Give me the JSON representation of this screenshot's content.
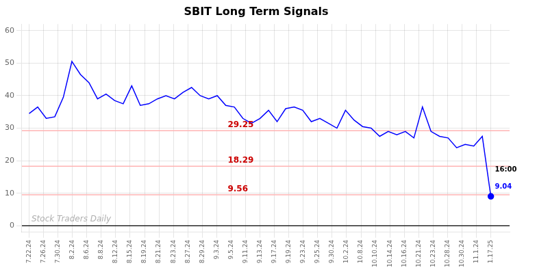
{
  "chart_data": {
    "type": "line",
    "title": "SBIT Long Term Signals",
    "xlim": [
      -0.5,
      33.3
    ],
    "xticks": [
      {
        "value": 0,
        "label": "7.22.24"
      },
      {
        "value": 1,
        "label": "7.26.24"
      },
      {
        "value": 2,
        "label": "7.30.24"
      },
      {
        "value": 3,
        "label": "8.2.24"
      },
      {
        "value": 4,
        "label": "8.6.24"
      },
      {
        "value": 5,
        "label": "8.8.24"
      },
      {
        "value": 6,
        "label": "8.12.24"
      },
      {
        "value": 7,
        "label": "8.15.24"
      },
      {
        "value": 8,
        "label": "8.19.24"
      },
      {
        "value": 9,
        "label": "8.21.24"
      },
      {
        "value": 10,
        "label": "8.23.24"
      },
      {
        "value": 11,
        "label": "8.27.24"
      },
      {
        "value": 12,
        "label": "8.29.24"
      },
      {
        "value": 13,
        "label": "9.3.24"
      },
      {
        "value": 14,
        "label": "9.5.24"
      },
      {
        "value": 15,
        "label": "9.11.24"
      },
      {
        "value": 16,
        "label": "9.13.24"
      },
      {
        "value": 17,
        "label": "9.17.24"
      },
      {
        "value": 18,
        "label": "9.19.24"
      },
      {
        "value": 19,
        "label": "9.23.24"
      },
      {
        "value": 20,
        "label": "9.25.24"
      },
      {
        "value": 21,
        "label": "9.30.24"
      },
      {
        "value": 22,
        "label": "10.2.24"
      },
      {
        "value": 23,
        "label": "10.8.24"
      },
      {
        "value": 24,
        "label": "10.10.24"
      },
      {
        "value": 25,
        "label": "10.14.24"
      },
      {
        "value": 26,
        "label": "10.16.24"
      },
      {
        "value": 27,
        "label": "10.21.24"
      },
      {
        "value": 28,
        "label": "10.23.24"
      },
      {
        "value": 29,
        "label": "10.28.24"
      },
      {
        "value": 30,
        "label": "10.30.24"
      },
      {
        "value": 31,
        "label": "11.1.24"
      },
      {
        "value": 32,
        "label": "1.17.25"
      }
    ],
    "ylim": [
      -2,
      62
    ],
    "yticks": [
      0,
      10,
      20,
      30,
      40,
      50,
      60
    ],
    "grid": true,
    "series": [
      {
        "name": "SBIT",
        "color": "blue",
        "marker": "last_point",
        "values": [
          34.5,
          36.5,
          33.0,
          33.5,
          39.5,
          50.5,
          46.5,
          44.0,
          39.0,
          40.5,
          38.5,
          37.5,
          43.0,
          37.0,
          37.5,
          39.0,
          40.0,
          39.0,
          41.0,
          42.5,
          40.0,
          39.0,
          40.0,
          37.0,
          36.5,
          33.0,
          31.5,
          33.0,
          35.5,
          32.0,
          36.0,
          36.5,
          35.5,
          32.0,
          33.0,
          31.5,
          30.0,
          35.5,
          32.5,
          30.5,
          30.0,
          27.5,
          29.0,
          28.0,
          29.0,
          27.0,
          36.5,
          29.0,
          27.5,
          27.0,
          24.0,
          25.0,
          24.5,
          27.5,
          9.04
        ]
      }
    ],
    "annotations": [
      {
        "type": "hline",
        "value": 29.25,
        "label": "29.25",
        "color": "#ffb3b3",
        "label_color": "#cc0000"
      },
      {
        "type": "hline",
        "value": 18.29,
        "label": "18.29",
        "color": "#ffb3b3",
        "label_color": "#cc0000"
      },
      {
        "type": "hline",
        "value": 9.56,
        "label": "9.56",
        "color": "#ffb3b3",
        "label_color": "#cc0000"
      },
      {
        "type": "text",
        "text": "16:00",
        "anchor": "last_point",
        "position": "above",
        "color": "black"
      },
      {
        "type": "text",
        "text": "9.04",
        "anchor": "last_point",
        "position": "right",
        "color": "blue"
      },
      {
        "type": "text",
        "text": "Stock Traders Daily",
        "anchor": "plot_origin",
        "position": "watermark",
        "color": "#b0b0b0"
      }
    ]
  }
}
